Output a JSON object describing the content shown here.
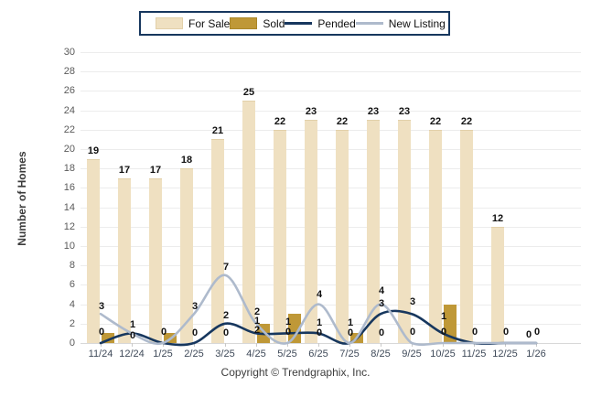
{
  "chart_data": {
    "type": "combo-bar-line",
    "ylabel": "Number of Homes",
    "ylim": [
      0,
      30
    ],
    "ytick_step": 2,
    "grid": true,
    "legend_position": "top",
    "categories": [
      "11/24",
      "12/24",
      "1/25",
      "2/25",
      "3/25",
      "4/25",
      "5/25",
      "6/25",
      "7/25",
      "8/25",
      "9/25",
      "10/25",
      "11/25",
      "12/25",
      "1/26"
    ],
    "series": [
      {
        "name": "For Sale",
        "type": "bar",
        "color": "#efe0c1",
        "border": "#e2d0a9",
        "values": [
          19,
          17,
          17,
          18,
          21,
          25,
          22,
          23,
          22,
          23,
          23,
          22,
          22,
          12,
          0
        ]
      },
      {
        "name": "Sold",
        "type": "bar",
        "color": "#bf9837",
        "border": "#aa8628",
        "values": [
          1,
          0,
          1,
          0,
          0,
          2,
          3,
          0,
          1,
          0,
          0,
          4,
          0,
          0,
          0
        ]
      },
      {
        "name": "Pended",
        "type": "line",
        "color": "#17375e",
        "values": [
          0,
          1,
          0,
          0,
          2,
          1,
          1,
          1,
          0,
          3,
          3,
          1,
          0,
          0,
          0
        ]
      },
      {
        "name": "New Listing",
        "type": "line",
        "color": "#aebacc",
        "values": [
          3,
          1,
          0,
          3,
          7,
          2,
          0,
          4,
          0,
          4,
          0,
          0,
          0,
          0,
          0
        ]
      }
    ],
    "point_labels": [
      [
        {
          "t": "3",
          "v": 3.0
        },
        {
          "t": "0",
          "v": 0.4
        }
      ],
      [
        {
          "t": "1",
          "v": 1.1
        },
        {
          "t": "0",
          "v": 0.0
        }
      ],
      [
        {
          "t": "0",
          "v": 0.4
        }
      ],
      [
        {
          "t": "3",
          "v": 3.0
        },
        {
          "t": "0",
          "v": 0.3
        }
      ],
      [
        {
          "t": "7",
          "v": 7.1
        },
        {
          "t": "2",
          "v": 2.1
        },
        {
          "t": "0",
          "v": 0.3
        }
      ],
      [
        {
          "t": "2",
          "v": 2.5
        },
        {
          "t": "1",
          "v": 1.5
        },
        {
          "t": "2",
          "v": 0.6
        }
      ],
      [
        {
          "t": "1",
          "v": 1.4
        },
        {
          "t": "0",
          "v": 0.4
        }
      ],
      [
        {
          "t": "4",
          "v": 4.2
        },
        {
          "t": "1",
          "v": 1.3
        },
        {
          "t": "0",
          "v": 0.3
        }
      ],
      [
        {
          "t": "1",
          "v": 1.3
        },
        {
          "t": "0",
          "v": 0.3
        }
      ],
      [
        {
          "t": "4",
          "v": 4.6
        },
        {
          "t": "3",
          "v": 3.3
        },
        {
          "t": "0",
          "v": 0.3
        }
      ],
      [
        {
          "t": "3",
          "v": 3.5
        },
        {
          "t": "0",
          "v": 0.4
        }
      ],
      [
        {
          "t": "1",
          "v": 2.0
        },
        {
          "t": "0",
          "v": 0.4
        }
      ],
      [
        {
          "t": "0",
          "v": 0.4
        }
      ],
      [
        {
          "t": "0",
          "v": 0.4
        }
      ],
      [
        {
          "t": "0",
          "v": 0.4
        }
      ]
    ]
  },
  "footer": {
    "copyright": "Copyright © Trendgraphix, Inc."
  }
}
